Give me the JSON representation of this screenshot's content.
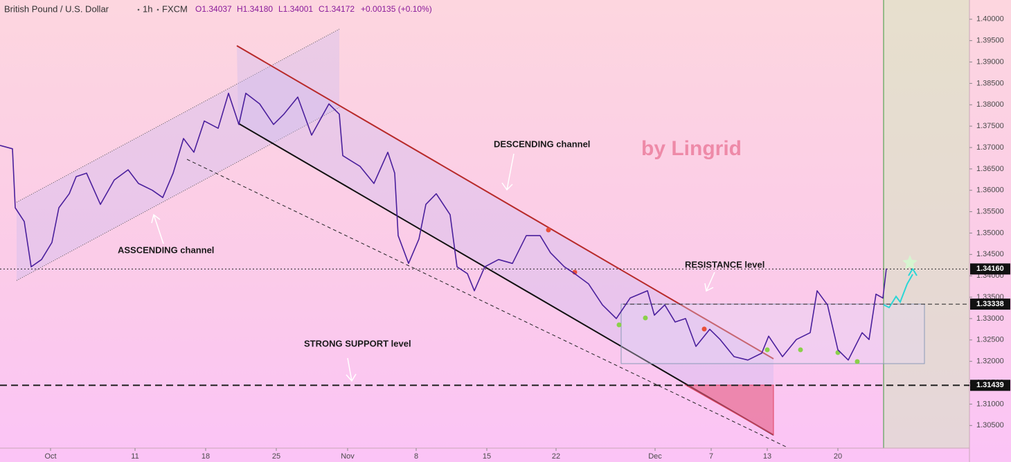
{
  "chart_data": {
    "type": "line",
    "header": {
      "symbol": "British Pound / U.S. Dollar",
      "interval": "1h",
      "source": "FXCM",
      "ohlc": [
        "O1.34037",
        "H1.34180",
        "L1.34001",
        "C1.34172"
      ],
      "change": "+0.00135 (+0.10%)"
    },
    "watermark": "by Lingrid",
    "annotations": [
      "DESCENDING channel",
      "ASSCENDING channel",
      "RESISTANCE level",
      "STRONG SUPPORT level"
    ],
    "x": [
      0,
      18,
      22,
      35,
      45,
      60,
      75,
      85,
      100,
      110,
      125,
      145,
      165,
      185,
      200,
      220,
      235,
      250,
      265,
      280,
      295,
      315,
      330,
      345,
      355,
      375,
      395,
      410,
      430,
      450,
      475,
      490,
      495,
      520,
      540,
      560,
      570,
      575,
      590,
      605,
      615,
      630,
      650,
      660,
      675,
      685,
      700,
      720,
      740,
      760,
      780,
      795,
      815,
      830,
      850,
      870,
      890,
      910,
      935,
      945,
      960,
      975,
      990,
      1005,
      1025,
      1040,
      1060,
      1080,
      1100,
      1110,
      1130,
      1150,
      1170,
      1180,
      1195,
      1210,
      1225,
      1245,
      1255,
      1265,
      1275,
      1280
    ],
    "series": [
      {
        "name": "GBPUSD",
        "color": "#4a1f9c",
        "values": [
          1.3705,
          1.3697,
          1.3559,
          1.3527,
          1.3421,
          1.3438,
          1.3478,
          1.3559,
          1.3592,
          1.3632,
          1.364,
          1.3567,
          1.3624,
          1.3648,
          1.3616,
          1.36,
          1.3583,
          1.364,
          1.3721,
          1.3689,
          1.3762,
          1.3745,
          1.3827,
          1.3754,
          1.3827,
          1.3802,
          1.3754,
          1.3778,
          1.3818,
          1.3729,
          1.3802,
          1.3778,
          1.3681,
          1.3656,
          1.3616,
          1.3689,
          1.364,
          1.3494,
          1.3429,
          1.3486,
          1.3567,
          1.3592,
          1.3543,
          1.3421,
          1.3405,
          1.3365,
          1.3421,
          1.3438,
          1.3429,
          1.3494,
          1.3494,
          1.3454,
          1.3421,
          1.3405,
          1.3381,
          1.3332,
          1.33,
          1.3348,
          1.3365,
          1.3308,
          1.3332,
          1.3292,
          1.33,
          1.3235,
          1.3275,
          1.3251,
          1.3211,
          1.3203,
          1.3219,
          1.3259,
          1.3211,
          1.3251,
          1.3267,
          1.3365,
          1.3332,
          1.3227,
          1.3203,
          1.3267,
          1.3251,
          1.3357,
          1.3348,
          1.3417
        ]
      }
    ],
    "xlim": [
      0,
      1400
    ],
    "xticks": [
      {
        "value": 73,
        "label": "Oct"
      },
      {
        "value": 195,
        "label": "11"
      },
      {
        "value": 297,
        "label": "18"
      },
      {
        "value": 399,
        "label": "25"
      },
      {
        "value": 502,
        "label": "Nov"
      },
      {
        "value": 601,
        "label": "8"
      },
      {
        "value": 703,
        "label": "15"
      },
      {
        "value": 803,
        "label": "22"
      },
      {
        "value": 946,
        "label": "Dec"
      },
      {
        "value": 1027,
        "label": "7"
      },
      {
        "value": 1108,
        "label": "13"
      },
      {
        "value": 1210,
        "label": "20"
      }
    ],
    "ylim": [
      1.2997,
      1.4045
    ],
    "yticks": [
      {
        "value": 1.305,
        "label": "1.30500"
      },
      {
        "value": 1.31,
        "label": "1.31000"
      },
      {
        "value": 1.315,
        "label": "1.31500"
      },
      {
        "value": 1.32,
        "label": "1.32000"
      },
      {
        "value": 1.325,
        "label": "1.32500"
      },
      {
        "value": 1.33,
        "label": "1.33000"
      },
      {
        "value": 1.335,
        "label": "1.33500"
      },
      {
        "value": 1.34,
        "label": "1.34000"
      },
      {
        "value": 1.345,
        "label": "1.34500"
      },
      {
        "value": 1.35,
        "label": "1.35000"
      },
      {
        "value": 1.355,
        "label": "1.35500"
      },
      {
        "value": 1.36,
        "label": "1.36000"
      },
      {
        "value": 1.365,
        "label": "1.36500"
      },
      {
        "value": 1.37,
        "label": "1.37000"
      },
      {
        "value": 1.375,
        "label": "1.37500"
      },
      {
        "value": 1.38,
        "label": "1.38000"
      },
      {
        "value": 1.385,
        "label": "1.38500"
      },
      {
        "value": 1.39,
        "label": "1.39000"
      },
      {
        "value": 1.395,
        "label": "1.39500"
      },
      {
        "value": 1.4,
        "label": "1.40000"
      }
    ],
    "price_levels": [
      {
        "value": 1.3416,
        "label": "1.34160"
      },
      {
        "value": 1.33338,
        "label": "1.33338"
      },
      {
        "value": 1.31439,
        "label": "1.31439"
      }
    ],
    "grid": false
  }
}
